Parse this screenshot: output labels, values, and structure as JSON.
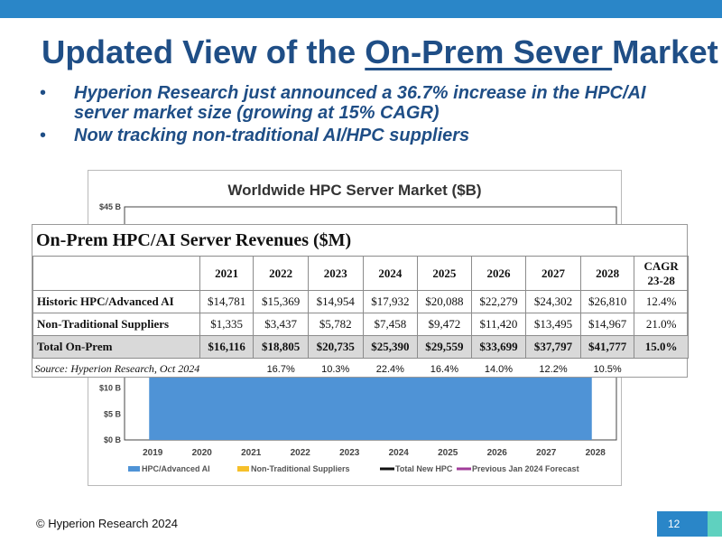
{
  "title": {
    "before": "Updated View of the ",
    "underlined": "On-Prem Sever ",
    "after": "Market"
  },
  "bullets": [
    "Hyperion Research just announced a 36.7% increase in the HPC/AI server market size (growing at 15% CAGR)",
    "Now tracking non-traditional AI/HPC suppliers"
  ],
  "bullet_symbol": "•",
  "chart_data": {
    "type": "bar",
    "title": "Worldwide HPC Server Market ($B)",
    "categories": [
      "2019",
      "2020",
      "2021",
      "2022",
      "2023",
      "2024",
      "2025",
      "2026",
      "2027",
      "2028"
    ],
    "visible_y_ticks": [
      "$45 B",
      "$10 B",
      "$5 B",
      "$0 B"
    ],
    "ylim": [
      0,
      45
    ],
    "legend": [
      "HPC/Advanced AI",
      "Non-Traditional Suppliers",
      "Total New HPC",
      "Previous Jan 2024 Forecast"
    ],
    "legend_colors": [
      "#4f93d6",
      "#f6c02a",
      "#111111",
      "#a13c9a"
    ],
    "legend_placement": "bottom",
    "visible_area_fill": "#4f93d6",
    "partially_hidden": true
  },
  "table": {
    "caption": "On-Prem HPC/AI Server Revenues ($M)",
    "header": [
      "",
      "2021",
      "2022",
      "2023",
      "2024",
      "2025",
      "2026",
      "2027",
      "2028",
      "CAGR 23-28"
    ],
    "rows": [
      {
        "label": "Historic HPC/Advanced AI",
        "values": [
          "$14,781",
          "$15,369",
          "$14,954",
          "$17,932",
          "$20,088",
          "$22,279",
          "$24,302",
          "$26,810",
          "12.4%"
        ]
      },
      {
        "label": "Non-Traditional Suppliers",
        "values": [
          "$1,335",
          "$3,437",
          "$5,782",
          "$7,458",
          "$9,472",
          "$11,420",
          "$13,495",
          "$14,967",
          "21.0%"
        ]
      },
      {
        "label": "Total On-Prem",
        "values": [
          "$16,116",
          "$18,805",
          "$20,735",
          "$25,390",
          "$29,559",
          "$33,699",
          "$37,797",
          "$41,777",
          "15.0%"
        ]
      }
    ],
    "source": "Source: Hyperion Research, Oct 2024",
    "growth": [
      "",
      "16.7%",
      "10.3%",
      "22.4%",
      "16.4%",
      "14.0%",
      "12.2%",
      "10.5%",
      ""
    ]
  },
  "footer": "© Hyperion Research 2024",
  "page_number": "12",
  "colors": {
    "brand_blue": "#1f4e86",
    "accent_blue": "#2a86c8",
    "teal": "#5fd1bf",
    "total_row_gray": "#d9d9d9"
  }
}
